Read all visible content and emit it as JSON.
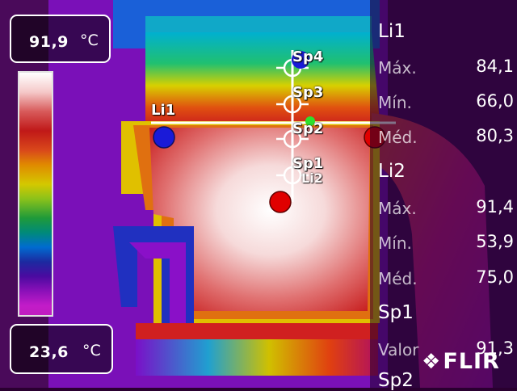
{
  "camera": {
    "max_temp": "91,9",
    "max_unit": "°C",
    "min_temp": "23,6",
    "min_unit": "°C",
    "brand": "FLIR"
  },
  "overlay_labels": {
    "line1": "Li1",
    "line2": "Li2",
    "sp1": "Sp1",
    "sp2": "Sp2",
    "sp3": "Sp3",
    "sp4": "Sp4"
  },
  "measurements": {
    "li1": {
      "title": "Li1",
      "max_label": "Máx.",
      "max": "84,1",
      "min_label": "Mín.",
      "min": "66,0",
      "avg_label": "Méd.",
      "avg": "80,3"
    },
    "li2": {
      "title": "Li2",
      "max_label": "Máx.",
      "max": "91,4",
      "min_label": "Mín.",
      "min": "53,9",
      "avg_label": "Méd.",
      "avg": "75,0"
    },
    "sp1": {
      "title": "Sp1",
      "value_label": "Valor",
      "value": "91,3"
    },
    "sp2": {
      "title": "Sp2"
    }
  },
  "icons": {
    "hot_marker": "red-circle",
    "cold_marker": "blue-circle",
    "spot_marker": "crosshair-circle",
    "logo": "flir-logo"
  },
  "colors": {
    "hot_marker": "#e00000",
    "cold_marker": "#1a1ad8",
    "measurement_line": "#ffffff",
    "spot_green": "#2ee02e"
  }
}
